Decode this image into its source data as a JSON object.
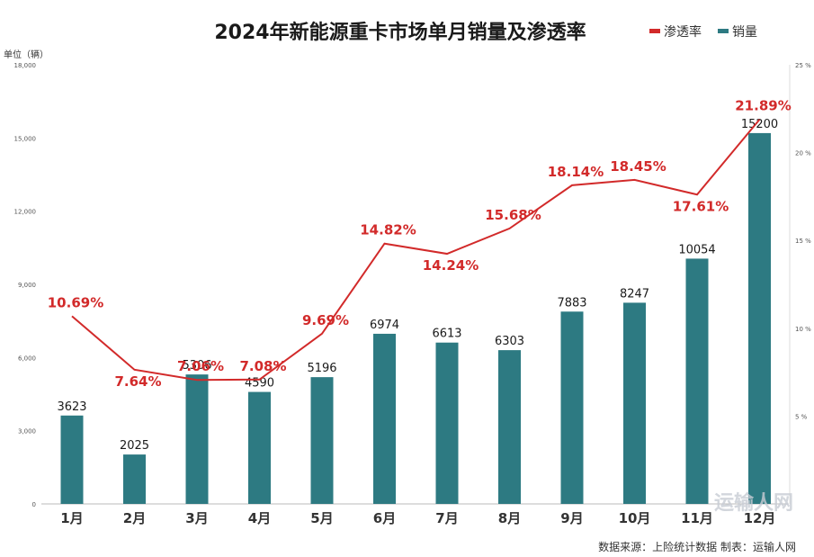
{
  "chart_data": {
    "type": "bar",
    "title": "2024年新能源重卡市场单月销量及渗透率",
    "y_unit_label": "单位（辆）",
    "categories": [
      "1月",
      "2月",
      "3月",
      "4月",
      "5月",
      "6月",
      "7月",
      "8月",
      "9月",
      "10月",
      "11月",
      "12月"
    ],
    "series": [
      {
        "name": "销量",
        "type": "bar",
        "axis": "left",
        "color": "#2d7a82",
        "values": [
          3623,
          2025,
          5306,
          4590,
          5196,
          6974,
          6613,
          6303,
          7883,
          8247,
          10054,
          15200
        ],
        "labels": [
          "3623",
          "2025",
          "5306",
          "4590",
          "5196",
          "6974",
          "6613",
          "6303",
          "7883",
          "8247",
          "10054",
          "15200"
        ]
      },
      {
        "name": "渗透率",
        "type": "line",
        "axis": "right",
        "color": "#d22a2a",
        "values": [
          10.69,
          7.64,
          7.06,
          7.08,
          9.69,
          14.82,
          14.24,
          15.68,
          18.14,
          18.45,
          17.61,
          21.89
        ],
        "labels": [
          "10.69%",
          "7.64%",
          "7.06%",
          "7.08%",
          "9.69%",
          "14.82%",
          "14.24%",
          "15.68%",
          "18.14%",
          "18.45%",
          "17.61%",
          "21.89%"
        ]
      }
    ],
    "y_left": {
      "ylim": [
        0,
        18000
      ],
      "ticks": [
        0,
        3000,
        6000,
        9000,
        12000,
        15000,
        18000
      ],
      "tick_labels": [
        "0",
        "3,000",
        "6,000",
        "9,000",
        "12,000",
        "15,000",
        "18,000"
      ]
    },
    "y_right": {
      "ylim": [
        0,
        25
      ],
      "ticks": [
        5,
        10,
        15,
        20,
        25
      ],
      "tick_labels": [
        "5 %",
        "10 %",
        "15 %",
        "20 %",
        "25 %"
      ]
    },
    "legend_position": "top-right",
    "grid": false
  },
  "source_text": "数据来源：上险统计数据 制表：运输人网",
  "watermark_text": "运输人网"
}
